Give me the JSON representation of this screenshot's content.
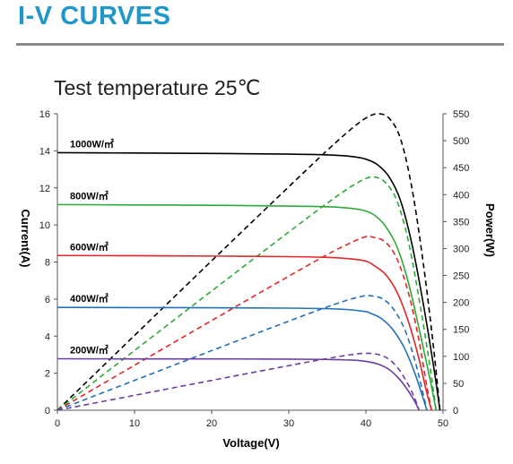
{
  "page": {
    "heading": "I-V CURVES"
  },
  "chart_data": {
    "type": "line",
    "title": "Test temperature 25℃",
    "xlabel": "Voltage(V)",
    "ylabel": "Current(A)",
    "y2label": "Power(W)",
    "xlim": [
      0,
      50
    ],
    "ylim": [
      0,
      16
    ],
    "y2lim": [
      0,
      550
    ],
    "xticks": [
      0,
      10,
      20,
      30,
      40,
      50
    ],
    "yticks": [
      0,
      2,
      4,
      6,
      8,
      10,
      12,
      14,
      16
    ],
    "y2ticks": [
      0,
      50,
      100,
      150,
      200,
      250,
      300,
      350,
      400,
      450,
      500,
      550
    ],
    "grid": false,
    "series": [
      {
        "name": "1000W/㎡",
        "color": "#000000",
        "isc": 13.9,
        "voc": 49.6,
        "knee": 41.5,
        "iv_points": [
          [
            0,
            13.9
          ],
          [
            10,
            13.88
          ],
          [
            20,
            13.86
          ],
          [
            30,
            13.82
          ],
          [
            35,
            13.78
          ],
          [
            38,
            13.7
          ],
          [
            40,
            13.55
          ],
          [
            41.5,
            13.25
          ],
          [
            43,
            12.6
          ],
          [
            44.5,
            11.3
          ],
          [
            46,
            8.9
          ],
          [
            47.5,
            5.6
          ],
          [
            48.8,
            2.3
          ],
          [
            49.6,
            0
          ]
        ],
        "pv_points": [
          [
            0,
            0
          ],
          [
            10,
            138.8
          ],
          [
            20,
            277.2
          ],
          [
            30,
            414.6
          ],
          [
            35,
            482.3
          ],
          [
            38,
            520.6
          ],
          [
            40,
            542
          ],
          [
            41.5,
            549.9
          ],
          [
            43,
            541.8
          ],
          [
            44.5,
            502.9
          ],
          [
            46,
            409.4
          ],
          [
            47.5,
            266
          ],
          [
            48.8,
            112.2
          ],
          [
            49.6,
            0
          ]
        ]
      },
      {
        "name": "800W/㎡",
        "color": "#2ea836",
        "isc": 11.1,
        "voc": 49.1,
        "knee": 41.2,
        "iv_points": [
          [
            0,
            11.1
          ],
          [
            10,
            11.08
          ],
          [
            20,
            11.06
          ],
          [
            30,
            11.02
          ],
          [
            35,
            10.98
          ],
          [
            38,
            10.9
          ],
          [
            40,
            10.75
          ],
          [
            41.2,
            10.5
          ],
          [
            42.5,
            9.95
          ],
          [
            44,
            8.85
          ],
          [
            45.5,
            6.9
          ],
          [
            47,
            4.2
          ],
          [
            48.3,
            1.7
          ],
          [
            49.1,
            0
          ]
        ],
        "pv_points": [
          [
            0,
            0
          ],
          [
            10,
            110.8
          ],
          [
            20,
            221.2
          ],
          [
            30,
            330.6
          ],
          [
            35,
            384.3
          ],
          [
            38,
            414.2
          ],
          [
            40,
            430
          ],
          [
            41.2,
            432.6
          ],
          [
            42.5,
            422.9
          ],
          [
            44,
            389.4
          ],
          [
            45.5,
            314
          ],
          [
            47,
            197.4
          ],
          [
            48.3,
            82.1
          ],
          [
            49.1,
            0
          ]
        ]
      },
      {
        "name": "600W/㎡",
        "color": "#e2262a",
        "isc": 8.35,
        "voc": 48.5,
        "knee": 40.9,
        "iv_points": [
          [
            0,
            8.35
          ],
          [
            10,
            8.34
          ],
          [
            20,
            8.32
          ],
          [
            30,
            8.29
          ],
          [
            35,
            8.25
          ],
          [
            38,
            8.17
          ],
          [
            40,
            8.05
          ],
          [
            40.9,
            7.85
          ],
          [
            42.5,
            7.35
          ],
          [
            44,
            6.4
          ],
          [
            45.5,
            4.8
          ],
          [
            46.8,
            2.9
          ],
          [
            47.8,
            1.1
          ],
          [
            48.5,
            0
          ]
        ],
        "pv_points": [
          [
            0,
            0
          ],
          [
            10,
            83.4
          ],
          [
            20,
            166.4
          ],
          [
            30,
            248.7
          ],
          [
            35,
            288.8
          ],
          [
            38,
            310.5
          ],
          [
            40,
            322
          ],
          [
            40.9,
            321.1
          ],
          [
            42.5,
            312.4
          ],
          [
            44,
            281.6
          ],
          [
            45.5,
            218.4
          ],
          [
            46.8,
            135.7
          ],
          [
            47.8,
            52.6
          ],
          [
            48.5,
            0
          ]
        ]
      },
      {
        "name": "400W/㎡",
        "color": "#2170b8",
        "isc": 5.55,
        "voc": 47.9,
        "knee": 40.5,
        "iv_points": [
          [
            0,
            5.55
          ],
          [
            10,
            5.54
          ],
          [
            20,
            5.53
          ],
          [
            30,
            5.51
          ],
          [
            35,
            5.48
          ],
          [
            38,
            5.42
          ],
          [
            40,
            5.32
          ],
          [
            40.5,
            5.25
          ],
          [
            42,
            4.95
          ],
          [
            43.5,
            4.35
          ],
          [
            45,
            3.35
          ],
          [
            46.3,
            2.05
          ],
          [
            47.3,
            0.8
          ],
          [
            47.9,
            0
          ]
        ],
        "pv_points": [
          [
            0,
            0
          ],
          [
            10,
            55.4
          ],
          [
            20,
            110.6
          ],
          [
            30,
            165.3
          ],
          [
            35,
            191.8
          ],
          [
            38,
            206
          ],
          [
            40,
            212.8
          ],
          [
            40.5,
            212.6
          ],
          [
            42,
            207.9
          ],
          [
            43.5,
            189.2
          ],
          [
            45,
            150.8
          ],
          [
            46.3,
            94.9
          ],
          [
            47.3,
            37.8
          ],
          [
            47.9,
            0
          ]
        ]
      },
      {
        "name": "200W/㎡",
        "color": "#6b3fa0",
        "isc": 2.78,
        "voc": 46.9,
        "knee": 39.8,
        "iv_points": [
          [
            0,
            2.78
          ],
          [
            10,
            2.77
          ],
          [
            20,
            2.77
          ],
          [
            30,
            2.76
          ],
          [
            35,
            2.74
          ],
          [
            38,
            2.71
          ],
          [
            39.8,
            2.65
          ],
          [
            41.5,
            2.5
          ],
          [
            43,
            2.2
          ],
          [
            44.3,
            1.7
          ],
          [
            45.4,
            1.1
          ],
          [
            46.3,
            0.5
          ],
          [
            46.9,
            0
          ]
        ],
        "pv_points": [
          [
            0,
            0
          ],
          [
            10,
            27.7
          ],
          [
            20,
            55.4
          ],
          [
            30,
            82.8
          ],
          [
            35,
            95.9
          ],
          [
            38,
            103
          ],
          [
            39.8,
            105.5
          ],
          [
            41.5,
            103.8
          ],
          [
            43,
            94.6
          ],
          [
            44.3,
            75.3
          ],
          [
            45.4,
            49.9
          ],
          [
            46.3,
            23.2
          ],
          [
            46.9,
            0
          ]
        ]
      }
    ]
  }
}
